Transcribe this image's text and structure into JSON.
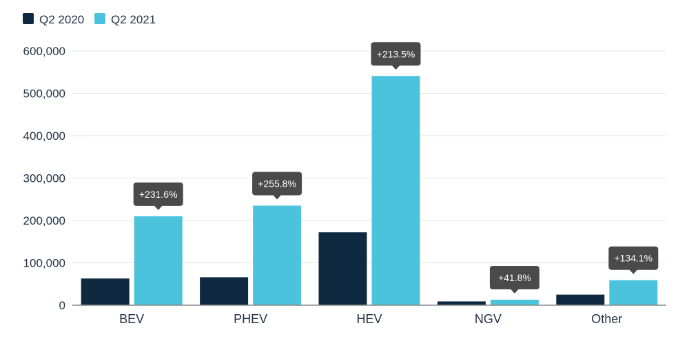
{
  "chart_data": {
    "type": "bar",
    "title": "",
    "xlabel": "",
    "ylabel": "",
    "categories": [
      "BEV",
      "PHEV",
      "HEV",
      "NGV",
      "Other"
    ],
    "series": [
      {
        "name": "Q2 2020",
        "color": "#0f2a40",
        "values": [
          63000,
          66000,
          172000,
          9000,
          25000
        ]
      },
      {
        "name": "Q2 2021",
        "color": "#4cc3dc",
        "values": [
          210000,
          235000,
          541000,
          13000,
          59000
        ]
      }
    ],
    "annotations": [
      "+231.6%",
      "+255.8%",
      "+213.5%",
      "+41.8%",
      "+134.1%"
    ],
    "ylim": [
      0,
      600000
    ],
    "yticks": [
      0,
      100000,
      200000,
      300000,
      400000,
      500000,
      600000
    ],
    "ytick_labels": [
      "0",
      "100,000",
      "200,000",
      "300,000",
      "400,000",
      "500,000",
      "600,000"
    ],
    "grid": true,
    "legend": "top-left",
    "annotation_color": "#4a4a4a",
    "grid_color": "#e3e3e3"
  }
}
